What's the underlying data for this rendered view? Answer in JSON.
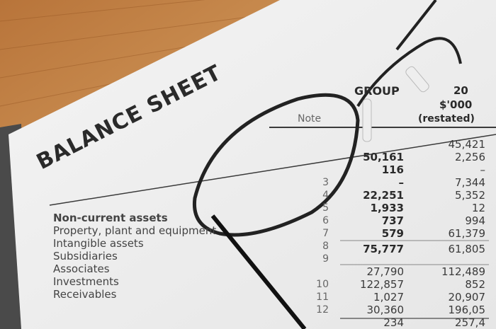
{
  "title": "BALANCE SHEET",
  "note_header": "Note",
  "group_header": "GROUP",
  "year_header": "20",
  "unit_header": "$'000",
  "restated_header": "(restated)",
  "section_label": "Non-current assets",
  "row_labels": [
    "Property, plant and equipment",
    "Intangible assets",
    "Subsidiaries",
    "Associates",
    "Investments",
    "Receivables"
  ],
  "notes": [
    "3",
    "4",
    "5",
    "6",
    "7",
    "8",
    "9",
    "10",
    "11",
    "12"
  ],
  "group_current": [
    "50,161",
    "116",
    "–",
    "22,251",
    "1,933",
    "737",
    "579",
    "75,777",
    "27,790",
    "122,857",
    "1,027",
    "30,360",
    "234"
  ],
  "group_restated": [
    "45,421",
    "2,256",
    "–",
    "7,344",
    "5,352",
    "12",
    "994",
    "61,379",
    "61,805",
    "112,489",
    "852",
    "20,907",
    "196,05",
    "257,4"
  ]
}
